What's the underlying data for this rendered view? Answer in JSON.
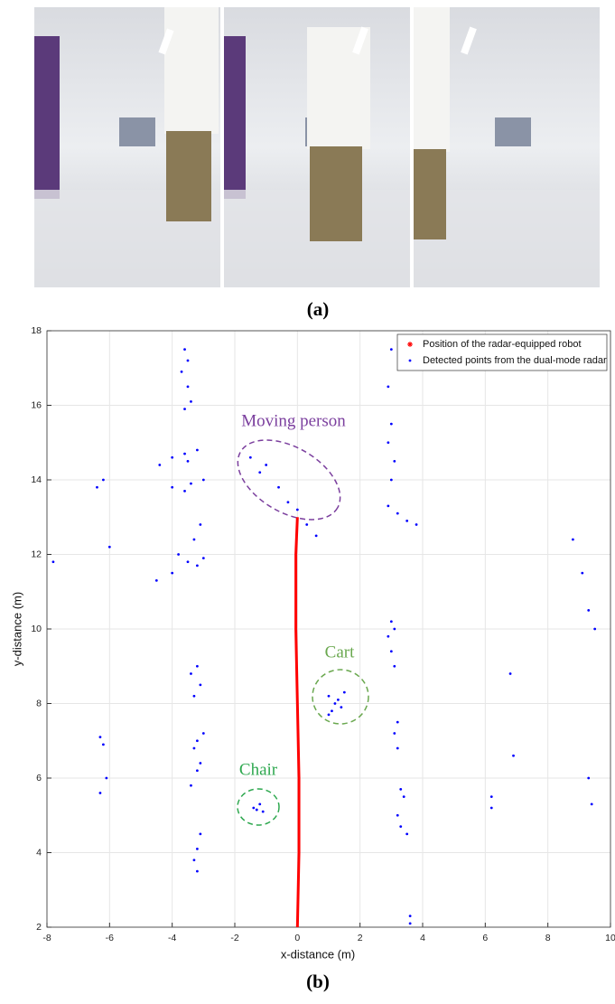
{
  "captions": {
    "a": "(a)",
    "b": "(b)"
  },
  "chart_data": {
    "type": "scatter",
    "xlabel": "x-distance (m)",
    "ylabel": "y-distance (m)",
    "xlim": [
      -8,
      10
    ],
    "ylim": [
      2,
      18
    ],
    "xticks": [
      -8,
      -6,
      -4,
      -2,
      0,
      2,
      4,
      6,
      8,
      10
    ],
    "yticks": [
      2,
      4,
      6,
      8,
      10,
      12,
      14,
      16,
      18
    ],
    "grid": true,
    "legend": "upper right",
    "series": [
      {
        "name": "Position of the radar-equipped robot",
        "color": "#ff0000",
        "type": "line",
        "x": [
          0,
          0.05,
          0.05,
          0,
          -0.05,
          -0.05,
          0
        ],
        "y": [
          2,
          4,
          6,
          8,
          10,
          12,
          13
        ]
      },
      {
        "name": "Detected points from the dual-mode radar",
        "color": "#0000ff",
        "type": "scatter",
        "x": [
          -3.6,
          -3.5,
          -3.7,
          -3.5,
          -3.4,
          -3.6,
          -4,
          -3.6,
          -3.2,
          -4.4,
          -3.5,
          -4,
          -3.4,
          -3,
          -3.6,
          -3.1,
          -3.3,
          -3.8,
          -3.5,
          -4,
          -3.2,
          -4.5,
          -3,
          -3.2,
          -3.4,
          -3.1,
          -3.3,
          -3,
          -3.2,
          -3.3,
          -3.1,
          -3.2,
          -3.4,
          -3.1,
          -3.2,
          -3.3,
          -3.2,
          -6.2,
          -6.4,
          -6,
          -6.3,
          -6.2,
          -6.1,
          -6.3,
          -7.8,
          -1.5,
          -1,
          -0.6,
          -0.3,
          0.3,
          0.6,
          -1.2,
          0,
          3,
          2.9,
          3,
          2.9,
          3.1,
          3,
          2.9,
          3.2,
          3.5,
          3.8,
          3,
          3.1,
          2.9,
          3,
          3.1,
          3.2,
          3.1,
          3.2,
          3.3,
          3.4,
          3.2,
          3.3,
          3.5,
          3.6,
          3.6,
          1,
          1.2,
          1.4,
          1.1,
          1.3,
          1.5,
          1,
          -1.4,
          -1.2,
          -1.1,
          -1.3,
          8.8,
          9.1,
          9.3,
          9.5,
          6.8,
          6.9,
          6.2,
          6.2,
          9.3,
          9.4
        ],
        "y": [
          17.5,
          17.2,
          16.9,
          16.5,
          16.1,
          15.9,
          14.6,
          14.7,
          14.8,
          14.4,
          14.5,
          13.8,
          13.9,
          14,
          13.7,
          12.8,
          12.4,
          12,
          11.8,
          11.5,
          11.7,
          11.3,
          11.9,
          9,
          8.8,
          8.5,
          8.2,
          7.2,
          7,
          6.8,
          6.4,
          6.2,
          5.8,
          4.5,
          4.1,
          3.8,
          3.5,
          14,
          13.8,
          12.2,
          7.1,
          6.9,
          6,
          5.6,
          11.8,
          14.6,
          14.4,
          13.8,
          13.4,
          12.8,
          12.5,
          14.2,
          13.2,
          17.5,
          16.5,
          15.5,
          15,
          14.5,
          14,
          13.3,
          13.1,
          12.9,
          12.8,
          10.2,
          10,
          9.8,
          9.4,
          9,
          7.5,
          7.2,
          6.8,
          5.7,
          5.5,
          5,
          4.7,
          4.5,
          2.3,
          2.1,
          8.2,
          8,
          7.9,
          7.8,
          8.1,
          8.3,
          7.7,
          5.2,
          5.3,
          5.1,
          5.15,
          12.4,
          11.5,
          10.5,
          10,
          8.8,
          6.6,
          5.5,
          5.2,
          6,
          5.3
        ]
      }
    ],
    "annotations": [
      {
        "text": "Moving person",
        "color": "#7b3f9e"
      },
      {
        "text": "Cart",
        "color": "#6aa84f"
      },
      {
        "text": "Chair",
        "color": "#2ea84f"
      }
    ]
  }
}
